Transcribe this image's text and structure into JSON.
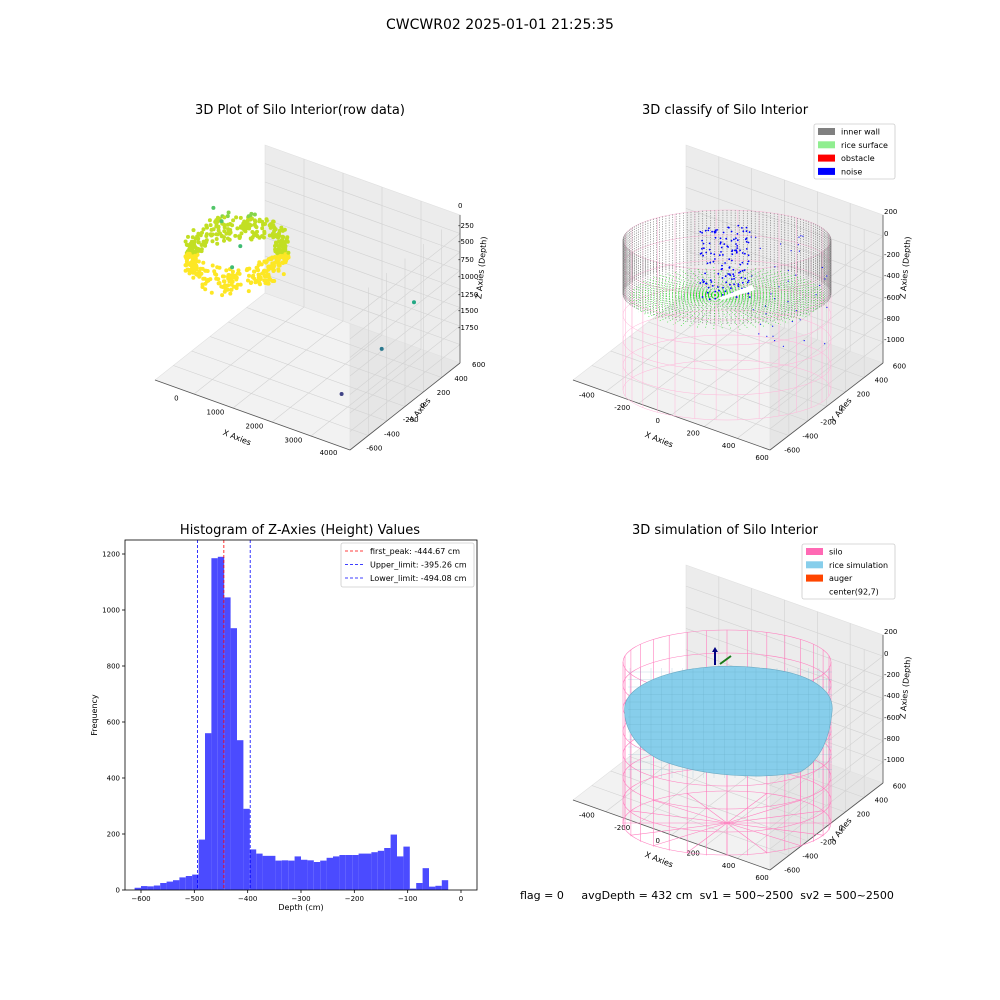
{
  "figure": {
    "suptitle": "CWCWR02 2025-01-01 21:25:35",
    "status_line": {
      "flag": "flag = 0",
      "avg_depth": "avgDepth = 432 cm",
      "sv1": "sv1 = 500~2500",
      "sv2": "sv2 = 500~2500"
    }
  },
  "chart_data": [
    {
      "type": "scatter",
      "subtype": "3d",
      "title": "3D Plot of Silo Interior(row data)",
      "xlabel": "X Axies",
      "ylabel": "Y Axies",
      "zlabel": "Z Axies (Depth)",
      "x_ticks": [
        "0",
        "1000",
        "2000",
        "3000",
        "4000"
      ],
      "y_ticks": [
        "-600",
        "-400",
        "-200",
        "0",
        "200",
        "400",
        "600"
      ],
      "z_ticks": [
        "0",
        "-250",
        "-500",
        "-750",
        "-1000",
        "-1250",
        "-1500",
        "-1750"
      ],
      "colormap": [
        "#fde725",
        "#c2df23",
        "#86d549",
        "#52c569",
        "#2ab07f",
        "#1e9b8a",
        "#25858e",
        "#2d708e",
        "#38588c",
        "#433e85",
        "#482173"
      ],
      "outlier_points": [
        {
          "x": 350,
          "y": -150,
          "z": -60,
          "color": "#52c569"
        },
        {
          "x": 450,
          "y": -100,
          "z": -250,
          "color": "#52c569"
        },
        {
          "x": 700,
          "y": 0,
          "z": -600,
          "color": "#3fbc73"
        },
        {
          "x": 600,
          "y": -50,
          "z": -850,
          "color": "#3fbc73"
        },
        {
          "x": 3800,
          "y": 500,
          "z": -1100,
          "color": "#22a884"
        },
        {
          "x": 3600,
          "y": 200,
          "z": -1500,
          "color": "#2a788e"
        },
        {
          "x": 3400,
          "y": -200,
          "z": -1800,
          "color": "#414487"
        }
      ]
    },
    {
      "type": "scatter",
      "subtype": "3d",
      "title": "3D classify of Silo Interior",
      "xlabel": "X Axies",
      "ylabel": "Y Axies",
      "zlabel": "Z Axies (Depth)",
      "x_ticks": [
        "-400",
        "-200",
        "0",
        "200",
        "400",
        "600"
      ],
      "y_ticks": [
        "-600",
        "-400",
        "-200",
        "0",
        "200",
        "400",
        "600"
      ],
      "z_ticks": [
        "200",
        "0",
        "-200",
        "-400",
        "-600",
        "-800",
        "-1000"
      ],
      "legend_position": "upper-right",
      "legend": [
        {
          "label": "inner wall",
          "color": "#808080"
        },
        {
          "label": "rice surface",
          "color": "#90ee90"
        },
        {
          "label": "obstacle",
          "color": "#ff0000"
        },
        {
          "label": "noise",
          "color": "#0000ff"
        }
      ],
      "silo_wire_color": "#ffb6d9",
      "point_colors": {
        "wall": "#808080",
        "surface": "#22e022",
        "noise": "#0000ff"
      }
    },
    {
      "type": "bar",
      "subtype": "histogram",
      "title": "Histogram of Z-Axies (Height) Values",
      "xlabel": "Depth (cm)",
      "ylabel": "Frequency",
      "xlim": [
        -630,
        30
      ],
      "ylim": [
        0,
        1250
      ],
      "x_ticks": [
        -600,
        -500,
        -400,
        -300,
        -200,
        -100,
        0
      ],
      "y_ticks": [
        0,
        200,
        400,
        600,
        800,
        1000,
        1200
      ],
      "bar_color": "#4b4bff",
      "bin_edges": [
        -612,
        -600,
        -588,
        -576,
        -564,
        -552,
        -540,
        -528,
        -516,
        -504,
        -492,
        -480,
        -468,
        -456,
        -444,
        -432,
        -420,
        -408,
        -396,
        -384,
        -372,
        -360,
        -348,
        -336,
        -324,
        -312,
        -300,
        -288,
        -276,
        -264,
        -252,
        -240,
        -228,
        -216,
        -204,
        -192,
        -180,
        -168,
        -156,
        -144,
        -132,
        -120,
        -108,
        -96,
        -84,
        -72,
        -60,
        -48,
        -36,
        -24,
        -12,
        0
      ],
      "counts": [
        8,
        14,
        13,
        16,
        25,
        30,
        35,
        45,
        50,
        55,
        180,
        560,
        1185,
        1190,
        1045,
        935,
        535,
        290,
        145,
        130,
        122,
        122,
        105,
        106,
        105,
        120,
        108,
        106,
        100,
        105,
        115,
        120,
        125,
        125,
        125,
        130,
        130,
        135,
        140,
        150,
        198,
        120,
        155,
        5,
        25,
        78,
        12,
        15,
        35,
        0,
        0
      ],
      "reference_lines": [
        {
          "label": "first_peak: -444.67 cm",
          "x": -444.67,
          "color": "#ff0000"
        },
        {
          "label": "Upper_limit: -395.26 cm",
          "x": -395.26,
          "color": "#0000ff"
        },
        {
          "label": "Lower_limit: -494.08 cm",
          "x": -494.08,
          "color": "#0000ff"
        }
      ],
      "legend_position": "upper-right"
    },
    {
      "type": "scatter",
      "subtype": "3d-surface",
      "title": "3D simulation of Silo Interior",
      "xlabel": "X Axies",
      "ylabel": "Y Axies",
      "zlabel": "Z Axies (Depth)",
      "x_ticks": [
        "-400",
        "-200",
        "0",
        "200",
        "400",
        "600"
      ],
      "y_ticks": [
        "-600",
        "-400",
        "-200",
        "0",
        "200",
        "400",
        "600"
      ],
      "z_ticks": [
        "200",
        "0",
        "-200",
        "-400",
        "-600",
        "-800",
        "-1000"
      ],
      "legend_position": "upper-right",
      "legend": [
        {
          "label": "silo",
          "color": "#ff69b4"
        },
        {
          "label": "rice simulation",
          "color": "#87ceeb"
        },
        {
          "label": "auger",
          "color": "#ff4500"
        },
        {
          "label": "center(92,7)",
          "color": "#ffffff"
        }
      ],
      "silo_wire_color": "#ff7fbf",
      "surface_color": "#87ceeb"
    }
  ]
}
